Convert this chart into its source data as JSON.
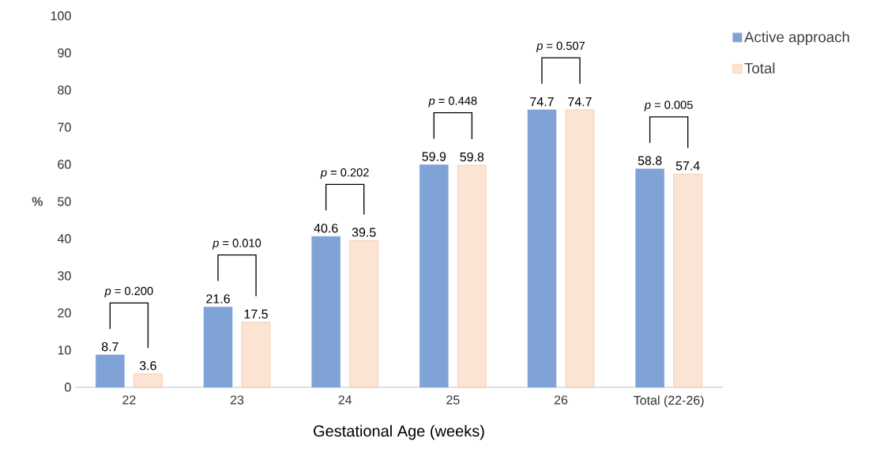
{
  "chart_data": {
    "type": "bar",
    "xlabel": "Gestational Age (weeks)",
    "ylabel": "%",
    "categories": [
      "22",
      "23",
      "24",
      "25",
      "26",
      "Total (22-26)"
    ],
    "series": [
      {
        "name": "Active approach",
        "color": "#7fa3d6",
        "values": [
          8.7,
          21.6,
          40.6,
          59.9,
          74.7,
          58.8
        ]
      },
      {
        "name": "Total",
        "color": "#f4b183",
        "values": [
          3.6,
          17.5,
          39.5,
          59.8,
          74.7,
          57.4
        ]
      }
    ],
    "ylim": [
      0,
      100
    ],
    "yticks": [
      0,
      10,
      20,
      30,
      40,
      50,
      60,
      70,
      80,
      90,
      100
    ],
    "data_labels": true,
    "legend": "top right",
    "grid": false,
    "annotations": [
      "*p* = 0.200",
      "*p* = 0.010",
      "*p* = 0.202",
      "*p* = 0.448",
      "*p* = 0.507",
      "*p* = 0.005"
    ]
  }
}
